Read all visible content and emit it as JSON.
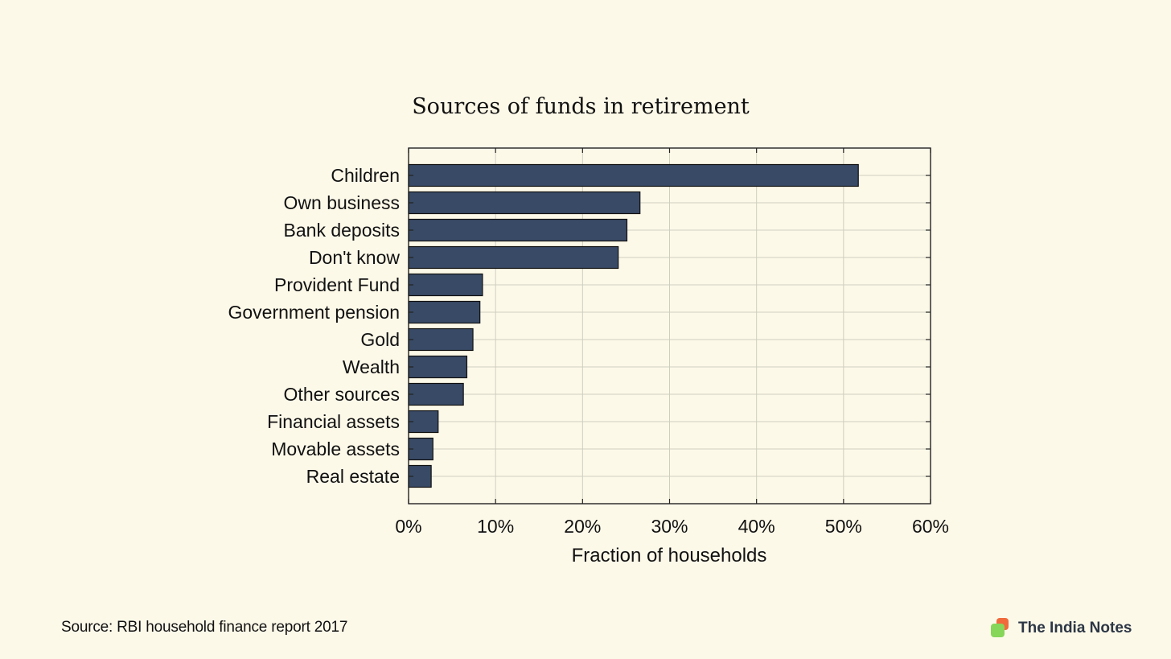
{
  "chart_data": {
    "type": "bar",
    "orientation": "horizontal",
    "title": "Sources of funds in retirement",
    "xlabel": "Fraction of households",
    "ylabel": "",
    "xlim": [
      0,
      60
    ],
    "xticks": [
      0,
      10,
      20,
      30,
      40,
      50,
      60
    ],
    "xtick_labels": [
      "0%",
      "10%",
      "20%",
      "30%",
      "40%",
      "50%",
      "60%"
    ],
    "grid": true,
    "categories": [
      "Children",
      "Own business",
      "Bank deposits",
      "Don't know",
      "Provident Fund",
      "Government pension",
      "Gold",
      "Wealth",
      "Other sources",
      "Financial assets",
      "Movable assets",
      "Real estate"
    ],
    "values": [
      51.7,
      26.6,
      25.1,
      24.1,
      8.5,
      8.2,
      7.4,
      6.7,
      6.3,
      3.4,
      2.8,
      2.6
    ],
    "bar_color": "#384a66"
  },
  "footer": {
    "source": "Source: RBI household finance report 2017",
    "brand": "The India Notes"
  }
}
